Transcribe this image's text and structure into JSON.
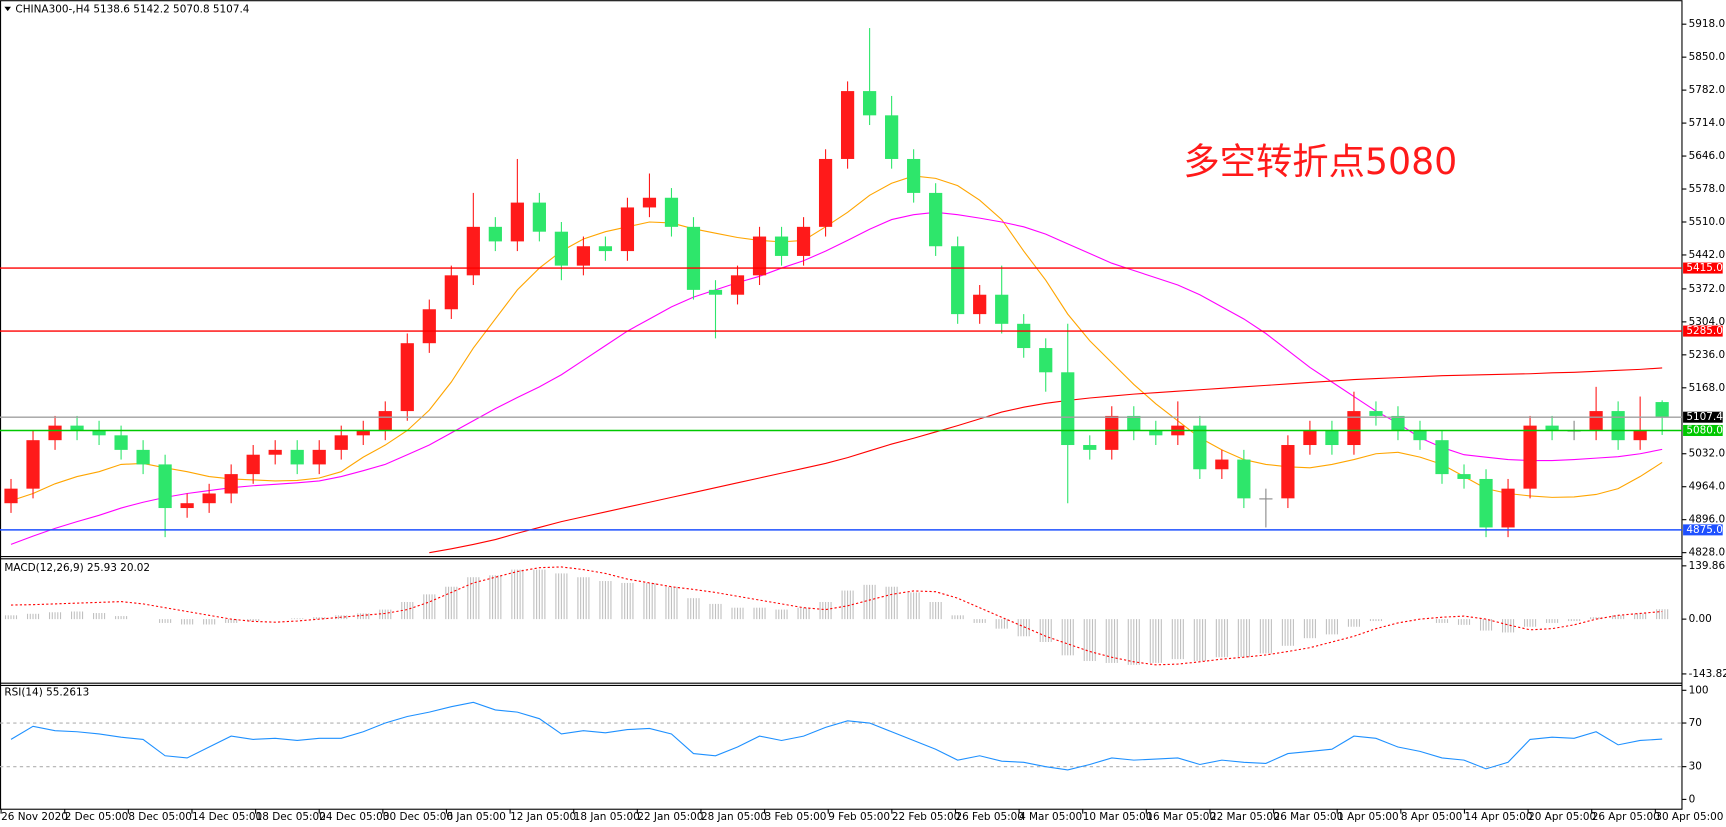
{
  "chart_data": [
    {
      "type": "candlestick",
      "title": "CHINA300-,H4  5138.6 5142.2 5070.8 5107.4",
      "annotation": "多空转折点5080",
      "up_color": "#ff1a1a",
      "down_color": "#2ee66b",
      "ylim": [
        4821,
        5963
      ],
      "yticks": [
        {
          "value": 5918,
          "label": "5918.0"
        },
        {
          "value": 5850,
          "label": "5850.0"
        },
        {
          "value": 5782,
          "label": "5782.0"
        },
        {
          "value": 5714,
          "label": "5714.0"
        },
        {
          "value": 5646,
          "label": "5646.0"
        },
        {
          "value": 5578,
          "label": "5578.0"
        },
        {
          "value": 5510,
          "label": "5510.0"
        },
        {
          "value": 5442,
          "label": "5442.0"
        },
        {
          "value": 5372,
          "label": "5372.0"
        },
        {
          "value": 5304,
          "label": "5304.0"
        },
        {
          "value": 5236,
          "label": "5236.0"
        },
        {
          "value": 5168,
          "label": "5168.0"
        },
        {
          "value": 5032,
          "label": "5032.0"
        },
        {
          "value": 4964,
          "label": "4964.0"
        },
        {
          "value": 4896,
          "label": "4896.0"
        },
        {
          "value": 4828,
          "label": "4828.0"
        }
      ],
      "levels": [
        {
          "value": 5415,
          "label": "5415.0",
          "color": "#ff0000"
        },
        {
          "value": 5285,
          "label": "5285.0",
          "color": "#ff0000"
        },
        {
          "value": 5080,
          "label": "5080.0",
          "color": "#00c800"
        },
        {
          "value": 4875,
          "label": "4875.0",
          "color": "#1e50ff"
        }
      ],
      "current": {
        "value": 5107.4,
        "label": "5107.4",
        "color": "#a0a0a0"
      },
      "xtick_labels": [
        "26 Nov 2020",
        "2 Dec 05:00",
        "8 Dec 05:00",
        "14 Dec 05:00",
        "18 Dec 05:00",
        "24 Dec 05:00",
        "30 Dec 05:00",
        "6 Jan 05:00",
        "12 Jan 05:00",
        "18 Jan 05:00",
        "22 Jan 05:00",
        "28 Jan 05:00",
        "3 Feb 05:00",
        "9 Feb 05:00",
        "22 Feb 05:00",
        "26 Feb 05:00",
        "4 Mar 05:00",
        "10 Mar 05:00",
        "16 Mar 05:00",
        "22 Mar 05:00",
        "26 Mar 05:00",
        "1 Apr 05:00",
        "8 Apr 05:00",
        "14 Apr 05:00",
        "20 Apr 05:00",
        "26 Apr 05:00",
        "30 Apr 05:00"
      ],
      "open": [
        4930,
        4960,
        5060,
        5090,
        5080,
        5070,
        5040,
        5010,
        4920,
        4930,
        4950,
        4990,
        5030,
        5040,
        5010,
        5040,
        5070,
        5080,
        5120,
        5260,
        5330,
        5400,
        5500,
        5470,
        5550,
        5490,
        5420,
        5460,
        5450,
        5540,
        5560,
        5500,
        5370,
        5360,
        5400,
        5480,
        5440,
        5500,
        5640,
        5780,
        5730,
        5640,
        5570,
        5460,
        5320,
        5360,
        5300,
        5250,
        5200,
        5050,
        5040,
        5110,
        5080,
        5070,
        5090,
        5000,
        5020,
        4940,
        4940,
        5050,
        5080,
        5050,
        5120,
        5110,
        5080,
        5060,
        4990,
        4980,
        4880,
        4960,
        5090,
        5080,
        5080,
        5120,
        5060,
        5138.6
      ],
      "high": [
        4980,
        5080,
        5110,
        5110,
        5100,
        5090,
        5060,
        5030,
        4950,
        4970,
        5010,
        5050,
        5060,
        5060,
        5060,
        5090,
        5100,
        5140,
        5280,
        5350,
        5420,
        5570,
        5520,
        5640,
        5570,
        5510,
        5480,
        5480,
        5560,
        5610,
        5580,
        5520,
        5390,
        5420,
        5500,
        5500,
        5520,
        5660,
        5800,
        5910,
        5770,
        5660,
        5590,
        5480,
        5380,
        5420,
        5320,
        5270,
        5300,
        5070,
        5130,
        5130,
        5100,
        5140,
        5110,
        5040,
        5040,
        4960,
        5070,
        5100,
        5100,
        5160,
        5140,
        5130,
        5100,
        5080,
        5010,
        5000,
        4980,
        5110,
        5110,
        5100,
        5170,
        5140,
        5150,
        5142.2
      ],
      "low": [
        4910,
        4940,
        5040,
        5060,
        5050,
        5020,
        4990,
        4860,
        4900,
        4910,
        4930,
        4970,
        5010,
        4990,
        4990,
        5020,
        5050,
        5060,
        5100,
        5240,
        5310,
        5380,
        5450,
        5450,
        5470,
        5390,
        5400,
        5430,
        5430,
        5520,
        5480,
        5350,
        5270,
        5340,
        5380,
        5420,
        5420,
        5480,
        5620,
        5710,
        5620,
        5550,
        5440,
        5300,
        5300,
        5280,
        5230,
        5160,
        4930,
        5020,
        5020,
        5060,
        5050,
        5050,
        4980,
        4980,
        4920,
        4880,
        4920,
        5030,
        5030,
        5030,
        5090,
        5060,
        5040,
        4970,
        4960,
        4860,
        4860,
        4940,
        5060,
        5060,
        5060,
        5040,
        5040,
        5070.8
      ],
      "close": [
        4960,
        5060,
        5090,
        5080,
        5070,
        5040,
        5010,
        4920,
        4930,
        4950,
        4990,
        5030,
        5040,
        5010,
        5040,
        5070,
        5080,
        5120,
        5260,
        5330,
        5400,
        5500,
        5470,
        5550,
        5490,
        5420,
        5460,
        5450,
        5540,
        5560,
        5500,
        5370,
        5360,
        5400,
        5480,
        5440,
        5500,
        5640,
        5780,
        5730,
        5640,
        5570,
        5460,
        5320,
        5360,
        5300,
        5250,
        5200,
        5050,
        5040,
        5110,
        5080,
        5070,
        5090,
        5000,
        5020,
        4940,
        4940,
        5050,
        5080,
        5050,
        5120,
        5110,
        5080,
        5060,
        4990,
        4980,
        4880,
        4960,
        5090,
        5080,
        5080,
        5120,
        5060,
        5080,
        5107.4
      ],
      "series": [
        {
          "color": "#ffa500",
          "values": [
            4935,
            4950,
            4970,
            4985,
            4995,
            5010,
            5012,
            5003,
            4995,
            4985,
            4980,
            4978,
            4976,
            4977,
            4982,
            4995,
            5025,
            5050,
            5080,
            5122,
            5180,
            5250,
            5310,
            5370,
            5415,
            5450,
            5475,
            5490,
            5500,
            5510,
            5508,
            5496,
            5487,
            5478,
            5472,
            5469,
            5472,
            5500,
            5530,
            5565,
            5590,
            5605,
            5600,
            5585,
            5555,
            5515,
            5450,
            5390,
            5320,
            5265,
            5220,
            5175,
            5135,
            5100,
            5065,
            5040,
            5020,
            5010,
            5005,
            5003,
            5010,
            5020,
            5032,
            5035,
            5025,
            5010,
            4985,
            4960,
            4950,
            4945,
            4942,
            4943,
            4948,
            4960,
            4985,
            5014
          ]
        },
        {
          "color": "#ff00ff",
          "values": [
            4845,
            4862,
            4878,
            4892,
            4905,
            4920,
            4932,
            4942,
            4950,
            4956,
            4962,
            4966,
            4969,
            4972,
            4976,
            4985,
            4997,
            5010,
            5030,
            5050,
            5075,
            5100,
            5125,
            5148,
            5170,
            5195,
            5225,
            5255,
            5285,
            5310,
            5335,
            5355,
            5370,
            5385,
            5398,
            5415,
            5430,
            5450,
            5472,
            5495,
            5515,
            5525,
            5530,
            5525,
            5518,
            5510,
            5500,
            5485,
            5465,
            5445,
            5425,
            5410,
            5395,
            5380,
            5360,
            5335,
            5310,
            5280,
            5245,
            5210,
            5180,
            5150,
            5120,
            5095,
            5065,
            5045,
            5030,
            5025,
            5020,
            5018,
            5018,
            5020,
            5023,
            5026,
            5032,
            5041
          ]
        },
        {
          "color": "#ff0000",
          "values": [
            null,
            null,
            null,
            null,
            null,
            null,
            null,
            null,
            null,
            null,
            null,
            null,
            null,
            null,
            null,
            null,
            null,
            null,
            null,
            4828,
            4836,
            4845,
            4855,
            4868,
            4880,
            4892,
            4902,
            4912,
            4922,
            4932,
            4942,
            4952,
            4962,
            4972,
            4982,
            4992,
            5002,
            5012,
            5024,
            5038,
            5052,
            5064,
            5077,
            5090,
            5104,
            5118,
            5128,
            5136,
            5142,
            5147,
            5151,
            5155,
            5158,
            5161,
            5164,
            5167,
            5170,
            5173,
            5176,
            5179,
            5182,
            5185,
            5187,
            5189,
            5191,
            5193,
            5194,
            5195,
            5196,
            5197,
            5199,
            5200,
            5202,
            5204,
            5206,
            5209
          ]
        }
      ]
    },
    {
      "type": "macd",
      "title": "MACD(12,26,9) 25.93 20.02",
      "ylim": [
        -166.7,
        159.8
      ],
      "yticks": [
        139.86,
        {
          "value": 0,
          "label": "0.00"
        },
        -143.82
      ],
      "bar_color": "#c0c0c0",
      "signal_color": "#ff0000",
      "values": [
        10,
        14,
        18,
        20,
        16,
        8,
        0,
        -10,
        -14,
        -14,
        -10,
        -5,
        0,
        2,
        5,
        10,
        15,
        25,
        45,
        65,
        85,
        110,
        115,
        130,
        130,
        120,
        110,
        100,
        95,
        95,
        85,
        55,
        40,
        30,
        30,
        25,
        30,
        45,
        75,
        90,
        85,
        70,
        45,
        10,
        -10,
        -25,
        -45,
        -60,
        -95,
        -110,
        -115,
        -120,
        -115,
        -105,
        -110,
        -100,
        -100,
        -90,
        -70,
        -50,
        -40,
        -20,
        -5,
        0,
        0,
        -10,
        -15,
        -30,
        -35,
        -20,
        -10,
        -5,
        5,
        10,
        15,
        25.93
      ],
      "signal": [
        37,
        38,
        40,
        42,
        44,
        46,
        40,
        30,
        20,
        10,
        0,
        -6,
        -8,
        -5,
        0,
        5,
        10,
        15,
        25,
        45,
        70,
        95,
        110,
        125,
        135,
        137,
        130,
        120,
        105,
        95,
        85,
        78,
        70,
        60,
        50,
        40,
        30,
        25,
        35,
        50,
        65,
        74,
        72,
        55,
        30,
        5,
        -20,
        -45,
        -65,
        -85,
        -100,
        -112,
        -120,
        -118,
        -112,
        -105,
        -100,
        -94,
        -85,
        -75,
        -60,
        -45,
        -25,
        -10,
        0,
        5,
        8,
        0,
        -15,
        -28,
        -25,
        -15,
        0,
        10,
        15,
        20.02
      ]
    },
    {
      "type": "line",
      "title": "RSI(14) 55.2613",
      "ylim": [
        -9,
        105
      ],
      "yticks": [
        100,
        70,
        30,
        0
      ],
      "levels": [
        70,
        30
      ],
      "color": "#1e90ff",
      "values": [
        55,
        67,
        63,
        62,
        60,
        57,
        55,
        40,
        38,
        48,
        58,
        55,
        56,
        54,
        56,
        56,
        62,
        70,
        76,
        80,
        85,
        89,
        82,
        80,
        74,
        60,
        63,
        61,
        64,
        65,
        60,
        42,
        40,
        48,
        58,
        54,
        58,
        66,
        72,
        70,
        62,
        54,
        46,
        36,
        40,
        35,
        34,
        30,
        27,
        32,
        38,
        36,
        37,
        38,
        32,
        36,
        34,
        33,
        42,
        44,
        46,
        58,
        56,
        48,
        44,
        38,
        36,
        28,
        34,
        55,
        57,
        56,
        62,
        50,
        54,
        55.2613
      ]
    }
  ]
}
